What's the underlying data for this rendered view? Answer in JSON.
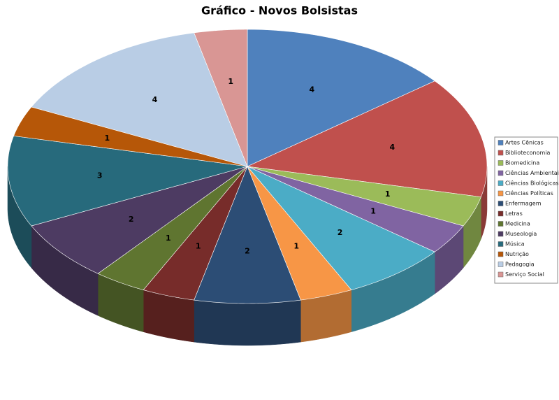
{
  "chart_data": {
    "type": "pie",
    "title": "Gráfico - Novos Bolsistas",
    "categories": [
      "Artes Cênicas",
      "Biblioteconomia",
      "Biomedicina",
      "Ciências Ambientais",
      "Ciências Biológicas",
      "Ciências Políticas",
      "Enfermagem",
      "Letras",
      "Medicina",
      "Museologia",
      "Música",
      "Nutrição",
      "Pedagogia",
      "Serviço Social"
    ],
    "values": [
      4,
      4,
      1,
      1,
      2,
      1,
      2,
      1,
      1,
      2,
      3,
      1,
      4,
      1
    ],
    "colors": [
      "#4f81bd",
      "#c0504d",
      "#9bbb59",
      "#8064a2",
      "#4bacc6",
      "#f79646",
      "#2c4d75",
      "#772c2a",
      "#5f7530",
      "#4d3b62",
      "#276a7c",
      "#b65708",
      "#b9cde5",
      "#d99694"
    ],
    "legend": "right"
  }
}
